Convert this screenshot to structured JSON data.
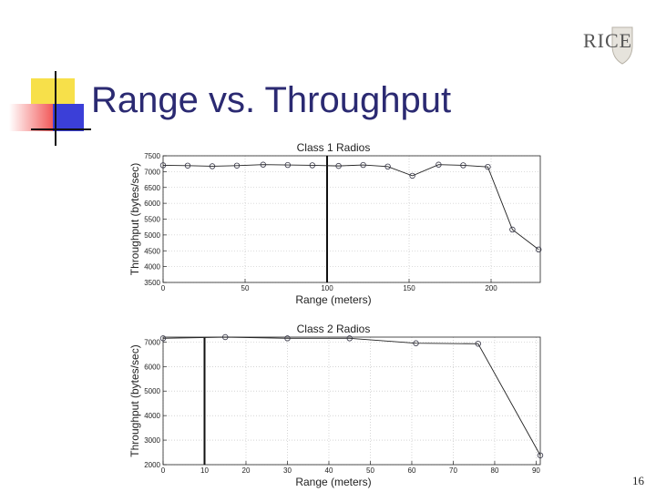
{
  "slide": {
    "title": "Range vs. Throughput",
    "page_number": "16",
    "logo_text": "RICE",
    "colors": {
      "title": "#2b2a72",
      "deco_yellow": "#f7e04a",
      "deco_red": "#f25a5a",
      "deco_blue": "#3b3fd8"
    }
  },
  "chart_data": [
    {
      "type": "line",
      "title": "Class 1 Radios",
      "xlabel": "Range (meters)",
      "ylabel": "Throughput (bytes/sec)",
      "xlim": [
        0,
        230
      ],
      "ylim": [
        3500,
        7500
      ],
      "xticks": [
        0,
        50,
        100,
        150,
        200
      ],
      "yticks": [
        3500,
        4000,
        4500,
        5000,
        5500,
        6000,
        6500,
        7000,
        7500
      ],
      "grid": true,
      "vline": 100,
      "series": [
        {
          "x": [
            0,
            15,
            30,
            45,
            61,
            76,
            91,
            107,
            122,
            137,
            152,
            168,
            183,
            198,
            213,
            229
          ],
          "y": [
            7200,
            7190,
            7170,
            7190,
            7220,
            7210,
            7200,
            7180,
            7210,
            7160,
            6870,
            7220,
            7200,
            7150,
            5170,
            4540
          ]
        }
      ]
    },
    {
      "type": "line",
      "title": "Class 2 Radios",
      "xlabel": "Range (meters)",
      "ylabel": "Throughput (bytes/sec)",
      "xlim": [
        0,
        91
      ],
      "ylim": [
        2000,
        7200
      ],
      "xticks": [
        0,
        10,
        20,
        30,
        40,
        50,
        60,
        70,
        80,
        90
      ],
      "yticks": [
        2000,
        3000,
        4000,
        5000,
        6000,
        7000
      ],
      "grid": true,
      "vline": 10,
      "series": [
        {
          "x": [
            0,
            15,
            30,
            45,
            61,
            76,
            91
          ],
          "y": [
            7150,
            7200,
            7150,
            7150,
            6950,
            6930,
            2380
          ]
        }
      ]
    }
  ]
}
